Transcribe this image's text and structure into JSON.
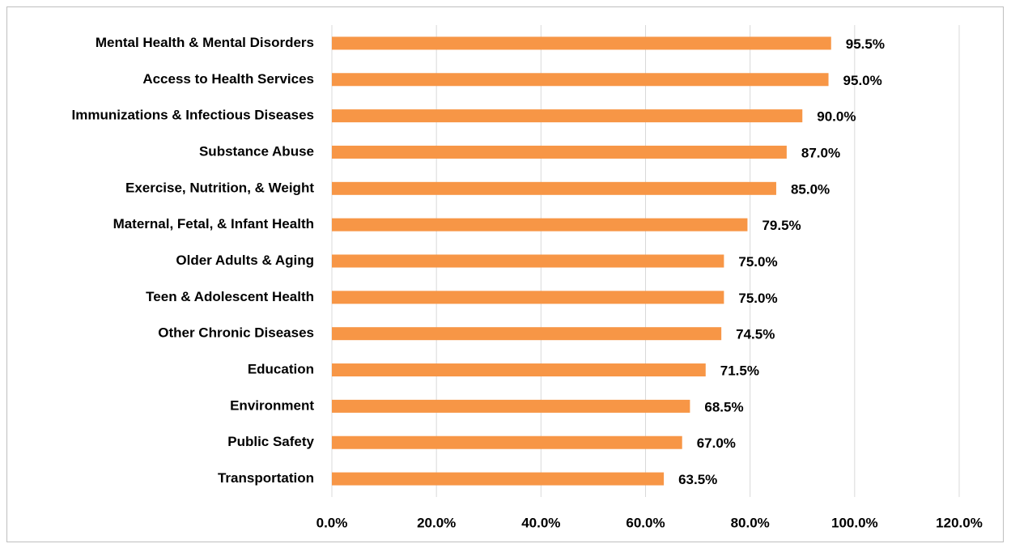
{
  "chart_data": {
    "type": "barh",
    "categories": [
      "Mental Health & Mental Disorders",
      "Access to Health Services",
      "Immunizations & Infectious Diseases",
      "Substance Abuse",
      "Exercise, Nutrition, & Weight",
      "Maternal, Fetal, & Infant Health",
      "Older Adults & Aging",
      "Teen & Adolescent Health",
      "Other Chronic Diseases",
      "Education",
      "Environment",
      "Public Safety",
      "Transportation"
    ],
    "values": [
      95.5,
      95.0,
      90.0,
      87.0,
      85.0,
      79.5,
      75.0,
      75.0,
      74.5,
      71.5,
      68.5,
      67.0,
      63.5
    ],
    "value_labels": [
      "95.5%",
      "95.0%",
      "90.0%",
      "87.0%",
      "85.0%",
      "79.5%",
      "75.0%",
      "75.0%",
      "74.5%",
      "71.5%",
      "68.5%",
      "67.0%",
      "63.5%"
    ],
    "color": "#f79646",
    "xlim": [
      0,
      120
    ],
    "xticks": [
      {
        "value": 0,
        "label": "0.0%"
      },
      {
        "value": 20,
        "label": "20.0%"
      },
      {
        "value": 40,
        "label": "40.0%"
      },
      {
        "value": 60,
        "label": "60.0%"
      },
      {
        "value": 80,
        "label": "80.0%"
      },
      {
        "value": 100,
        "label": "100.0%"
      },
      {
        "value": 120,
        "label": "120.0%"
      }
    ],
    "grid": true
  }
}
